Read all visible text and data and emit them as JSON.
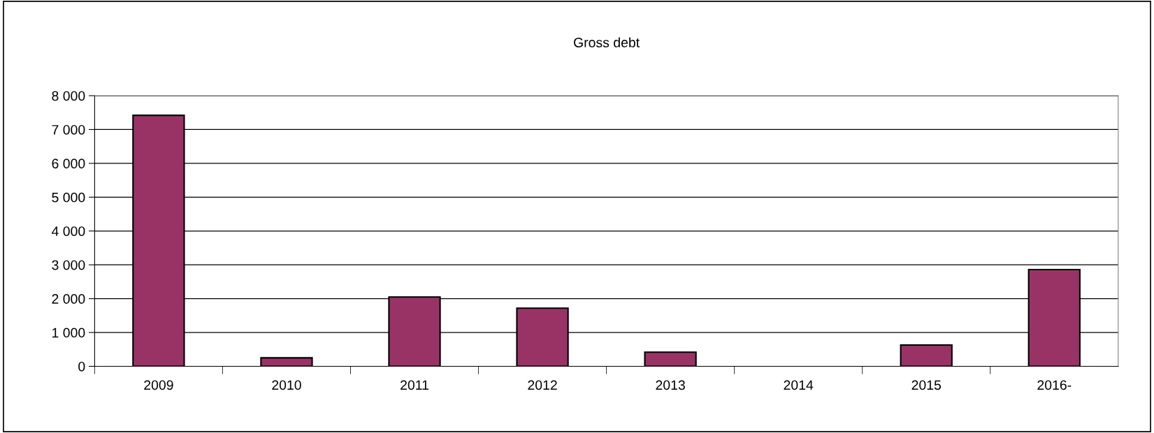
{
  "chart_data": {
    "type": "bar",
    "title": "Gross debt",
    "categories": [
      "2009",
      "2010",
      "2011",
      "2012",
      "2013",
      "2014",
      "2015",
      "2016-"
    ],
    "values": [
      7420,
      250,
      2050,
      1720,
      420,
      null,
      630,
      2860
    ],
    "color": "#993366",
    "ylim": [
      0,
      8000
    ],
    "yticks": [
      {
        "value": 0,
        "label": "0"
      },
      {
        "value": 1000,
        "label": "1 000"
      },
      {
        "value": 2000,
        "label": "2 000"
      },
      {
        "value": 3000,
        "label": "3 000"
      },
      {
        "value": 4000,
        "label": "4 000"
      },
      {
        "value": 5000,
        "label": "5 000"
      },
      {
        "value": 6000,
        "label": "6 000"
      },
      {
        "value": 7000,
        "label": "7 000"
      },
      {
        "value": 8000,
        "label": "8 000"
      }
    ],
    "grid": "y",
    "legend": false
  }
}
